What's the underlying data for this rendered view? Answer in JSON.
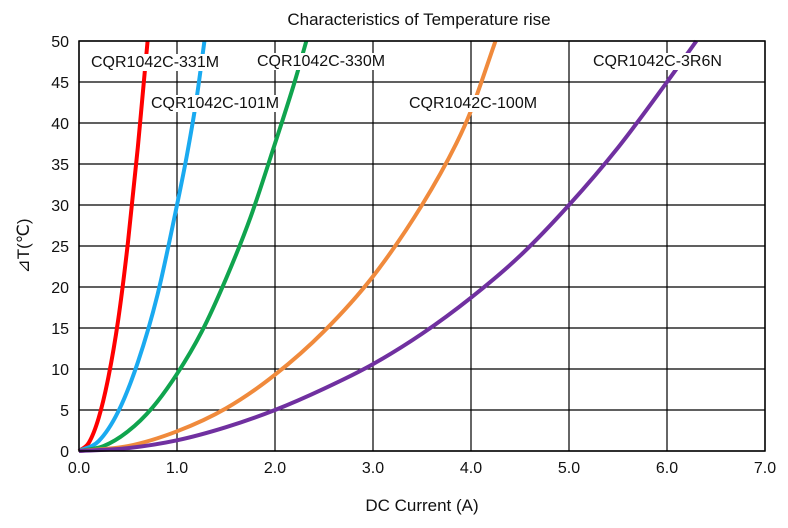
{
  "chart_data": {
    "type": "line",
    "title": "Characteristics of Temperature rise",
    "xlabel": "DC Current (A)",
    "ylabel": "⊿T(℃)",
    "xlim": [
      0,
      7
    ],
    "ylim": [
      0,
      50
    ],
    "xticks": [
      "0.0",
      "1.0",
      "2.0",
      "3.0",
      "4.0",
      "5.0",
      "6.0",
      "7.0"
    ],
    "yticks": [
      "0",
      "5",
      "10",
      "15",
      "20",
      "25",
      "30",
      "35",
      "40",
      "45",
      "50"
    ],
    "grid": true,
    "series": [
      {
        "name": "CQR1042C-331M",
        "color": "#ff0000",
        "x": [
          0,
          0.1,
          0.2,
          0.3,
          0.4,
          0.5,
          0.6,
          0.65,
          0.7
        ],
        "y": [
          0,
          1,
          4,
          9,
          16,
          25.5,
          37,
          43.5,
          50
        ]
      },
      {
        "name": "CQR1042C-101M",
        "color": "#1aaaf0",
        "x": [
          0,
          0.2,
          0.4,
          0.6,
          0.8,
          1.0,
          1.1,
          1.2,
          1.28
        ],
        "y": [
          0,
          1.2,
          4.8,
          10.8,
          19,
          30,
          36,
          43,
          50
        ]
      },
      {
        "name": "CQR1042C-330M",
        "color": "#10a44e",
        "x": [
          0,
          0.25,
          0.5,
          0.75,
          1.0,
          1.25,
          1.5,
          1.75,
          2.0,
          2.2,
          2.32
        ],
        "y": [
          0,
          0.6,
          2.4,
          5.3,
          9.4,
          14.5,
          21,
          28.5,
          37.5,
          45,
          50
        ]
      },
      {
        "name": "CQR1042C-100M",
        "color": "#f08a3c",
        "x": [
          0,
          0.5,
          1.0,
          1.5,
          2.0,
          2.5,
          3.0,
          3.5,
          3.85,
          4.0,
          4.25
        ],
        "y": [
          0,
          0.6,
          2.4,
          5.2,
          9.3,
          14.6,
          21.3,
          30,
          37.5,
          41.5,
          50
        ]
      },
      {
        "name": "CQR1042C-3R6N",
        "color": "#7030a0",
        "x": [
          0,
          0.5,
          1.0,
          1.5,
          2.0,
          2.5,
          3.0,
          3.5,
          4.0,
          4.5,
          5.0,
          5.5,
          6.0,
          6.3
        ],
        "y": [
          0,
          0.35,
          1.3,
          2.9,
          5,
          7.6,
          10.6,
          14.3,
          18.7,
          23.8,
          30,
          37,
          45,
          50
        ]
      }
    ]
  }
}
